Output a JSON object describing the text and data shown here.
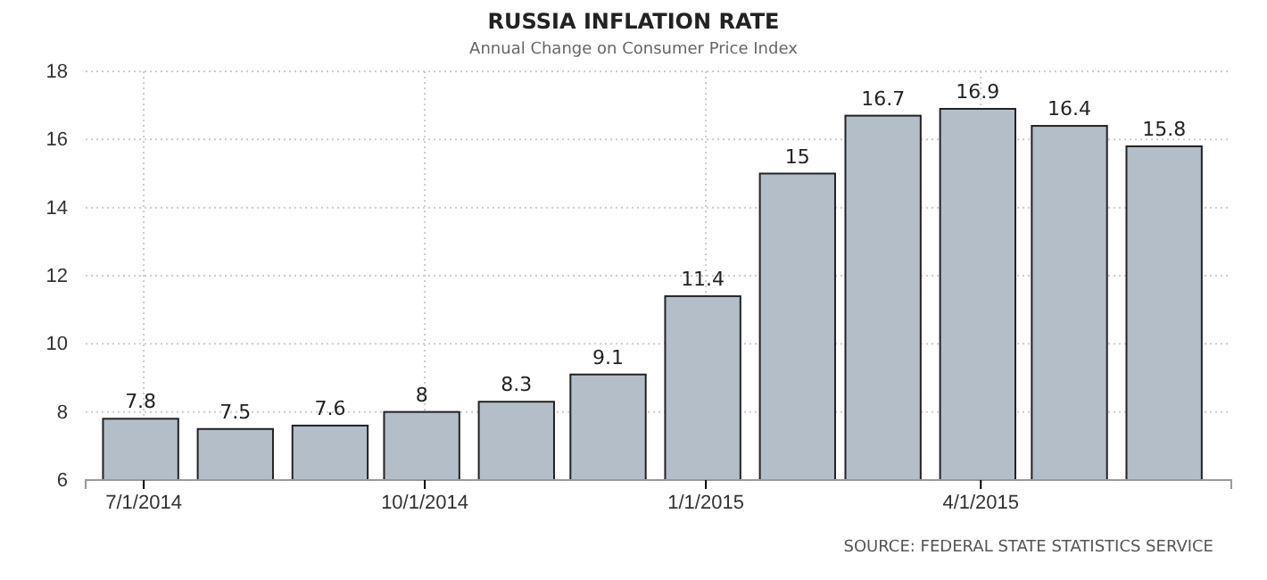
{
  "chart_data": {
    "type": "bar",
    "title": "RUSSIA INFLATION RATE",
    "subtitle": "Annual Change on Consumer Price Index",
    "x": [
      "2014-06-30",
      "2014-07-31",
      "2014-08-31",
      "2014-09-30",
      "2014-10-31",
      "2014-11-30",
      "2014-12-31",
      "2015-01-31",
      "2015-02-28",
      "2015-03-31",
      "2015-04-30",
      "2015-05-31"
    ],
    "values": [
      7.8,
      7.5,
      7.6,
      8,
      8.3,
      9.1,
      11.4,
      15,
      16.7,
      16.9,
      16.4,
      15.8
    ],
    "color": "#b4bec9",
    "xlim": [
      "2014-06-12",
      "2015-06-22"
    ],
    "xticks": [
      {
        "value": "2014-07-01",
        "label": "7/1/2014"
      },
      {
        "value": "2014-10-01",
        "label": "10/1/2014"
      },
      {
        "value": "2015-01-01",
        "label": "1/1/2015"
      },
      {
        "value": "2015-04-01",
        "label": "4/1/2015"
      }
    ],
    "ylim": [
      6,
      18
    ],
    "yticks": [
      6,
      8,
      10,
      12,
      14,
      16,
      18
    ],
    "grid": true,
    "data_labels": true,
    "annotations": [
      "SOURCE: FEDERAL STATE STATISTICS SERVICE"
    ]
  }
}
